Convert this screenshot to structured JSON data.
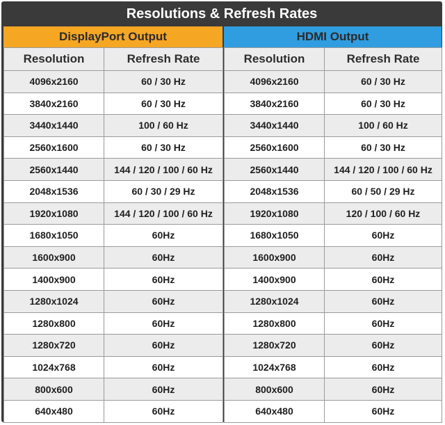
{
  "title": "Resolutions & Refresh Rates",
  "colors": {
    "dark": "#3a3a3a",
    "displayport_accent": "#f5a623",
    "hdmi_accent": "#2f9de0",
    "row_alt": "#ececec"
  },
  "displayport": {
    "header": "DisplayPort Output",
    "col_resolution": "Resolution",
    "col_refresh": "Refresh Rate",
    "rows": [
      {
        "res": "4096x2160",
        "rate": "60 / 30 Hz"
      },
      {
        "res": "3840x2160",
        "rate": "60 / 30 Hz"
      },
      {
        "res": "3440x1440",
        "rate": "100 / 60 Hz"
      },
      {
        "res": "2560x1600",
        "rate": "60 / 30 Hz"
      },
      {
        "res": "2560x1440",
        "rate": "144 / 120 / 100 / 60 Hz"
      },
      {
        "res": "2048x1536",
        "rate": "60 / 30 / 29 Hz"
      },
      {
        "res": "1920x1080",
        "rate": "144 / 120 / 100 / 60 Hz"
      },
      {
        "res": "1680x1050",
        "rate": "60Hz"
      },
      {
        "res": "1600x900",
        "rate": "60Hz"
      },
      {
        "res": "1400x900",
        "rate": "60Hz"
      },
      {
        "res": "1280x1024",
        "rate": "60Hz"
      },
      {
        "res": "1280x800",
        "rate": "60Hz"
      },
      {
        "res": "1280x720",
        "rate": "60Hz"
      },
      {
        "res": "1024x768",
        "rate": "60Hz"
      },
      {
        "res": "800x600",
        "rate": "60Hz"
      },
      {
        "res": "640x480",
        "rate": "60Hz"
      }
    ]
  },
  "hdmi": {
    "header": "HDMI Output",
    "col_resolution": "Resolution",
    "col_refresh": "Refresh Rate",
    "rows": [
      {
        "res": "4096x2160",
        "rate": "60 / 30 Hz"
      },
      {
        "res": "3840x2160",
        "rate": "60 / 30 Hz"
      },
      {
        "res": "3440x1440",
        "rate": "100 / 60 Hz"
      },
      {
        "res": "2560x1600",
        "rate": "60 / 30 Hz"
      },
      {
        "res": "2560x1440",
        "rate": "144 / 120 / 100 / 60 Hz"
      },
      {
        "res": "2048x1536",
        "rate": "60 / 50 / 29 Hz"
      },
      {
        "res": "1920x1080",
        "rate": "120 / 100 / 60 Hz"
      },
      {
        "res": "1680x1050",
        "rate": "60Hz"
      },
      {
        "res": "1600x900",
        "rate": "60Hz"
      },
      {
        "res": "1400x900",
        "rate": "60Hz"
      },
      {
        "res": "1280x1024",
        "rate": "60Hz"
      },
      {
        "res": "1280x800",
        "rate": "60Hz"
      },
      {
        "res": "1280x720",
        "rate": "60Hz"
      },
      {
        "res": "1024x768",
        "rate": "60Hz"
      },
      {
        "res": "800x600",
        "rate": "60Hz"
      },
      {
        "res": "640x480",
        "rate": "60Hz"
      }
    ]
  }
}
